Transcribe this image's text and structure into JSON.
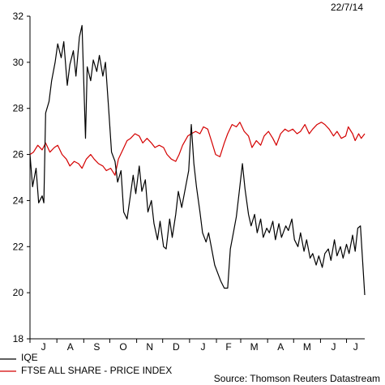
{
  "date_stamp": "22/7/14",
  "source": "Source: Thomson Reuters Datastream",
  "colors": {
    "iqe": "#000000",
    "ftse": "#d40000",
    "axis": "#000000"
  },
  "chart_data": {
    "type": "line",
    "title": "",
    "xlabel": "",
    "ylabel": "",
    "ylim": [
      18,
      32
    ],
    "yticks": [
      18,
      20,
      22,
      24,
      26,
      28,
      30,
      32
    ],
    "grid": false,
    "legend_placement": "bottom-left",
    "x_range": [
      "2013-07-01",
      "2014-07-22"
    ],
    "month_labels": [
      "J",
      "A",
      "S",
      "O",
      "N",
      "D",
      "J",
      "F",
      "M",
      "A",
      "M",
      "J",
      "J"
    ],
    "series": [
      {
        "name": "IQE",
        "color": "#000000",
        "points": [
          [
            "2013-07-01",
            26.0
          ],
          [
            "2013-07-04",
            24.6
          ],
          [
            "2013-07-08",
            25.4
          ],
          [
            "2013-07-11",
            23.9
          ],
          [
            "2013-07-15",
            24.2
          ],
          [
            "2013-07-17",
            23.9
          ],
          [
            "2013-07-19",
            27.8
          ],
          [
            "2013-07-23",
            28.3
          ],
          [
            "2013-07-26",
            29.2
          ],
          [
            "2013-07-30",
            30.0
          ],
          [
            "2013-08-02",
            30.8
          ],
          [
            "2013-08-06",
            30.2
          ],
          [
            "2013-08-09",
            30.9
          ],
          [
            "2013-08-13",
            29.0
          ],
          [
            "2013-08-16",
            29.9
          ],
          [
            "2013-08-20",
            30.5
          ],
          [
            "2013-08-23",
            29.4
          ],
          [
            "2013-08-27",
            31.1
          ],
          [
            "2013-08-30",
            31.6
          ],
          [
            "2013-09-03",
            26.7
          ],
          [
            "2013-09-05",
            29.8
          ],
          [
            "2013-09-09",
            29.2
          ],
          [
            "2013-09-12",
            30.1
          ],
          [
            "2013-09-16",
            29.6
          ],
          [
            "2013-09-19",
            30.3
          ],
          [
            "2013-09-23",
            29.4
          ],
          [
            "2013-09-26",
            30.0
          ],
          [
            "2013-09-30",
            27.8
          ],
          [
            "2013-10-03",
            26.1
          ],
          [
            "2013-10-07",
            25.7
          ],
          [
            "2013-10-10",
            24.8
          ],
          [
            "2013-10-14",
            25.3
          ],
          [
            "2013-10-17",
            23.5
          ],
          [
            "2013-10-21",
            23.2
          ],
          [
            "2013-10-24",
            24.0
          ],
          [
            "2013-10-28",
            25.1
          ],
          [
            "2013-10-31",
            24.3
          ],
          [
            "2013-11-04",
            25.5
          ],
          [
            "2013-11-07",
            24.4
          ],
          [
            "2013-11-11",
            24.9
          ],
          [
            "2013-11-14",
            23.5
          ],
          [
            "2013-11-18",
            24.0
          ],
          [
            "2013-11-21",
            23.0
          ],
          [
            "2013-11-25",
            22.3
          ],
          [
            "2013-11-28",
            23.1
          ],
          [
            "2013-12-02",
            22.0
          ],
          [
            "2013-12-05",
            21.9
          ],
          [
            "2013-12-09",
            23.2
          ],
          [
            "2013-12-12",
            22.4
          ],
          [
            "2013-12-16",
            23.4
          ],
          [
            "2013-12-19",
            24.4
          ],
          [
            "2013-12-23",
            23.7
          ],
          [
            "2013-12-27",
            24.5
          ],
          [
            "2013-12-31",
            25.3
          ],
          [
            "2014-01-03",
            27.3
          ],
          [
            "2014-01-06",
            25.6
          ],
          [
            "2014-01-09",
            24.6
          ],
          [
            "2014-01-13",
            23.5
          ],
          [
            "2014-01-16",
            22.6
          ],
          [
            "2014-01-20",
            22.2
          ],
          [
            "2014-01-23",
            22.6
          ],
          [
            "2014-01-27",
            21.8
          ],
          [
            "2014-01-30",
            21.2
          ],
          [
            "2014-02-03",
            20.8
          ],
          [
            "2014-02-06",
            20.5
          ],
          [
            "2014-02-10",
            20.2
          ],
          [
            "2014-02-14",
            20.2
          ],
          [
            "2014-02-17",
            21.9
          ],
          [
            "2014-02-20",
            22.5
          ],
          [
            "2014-02-24",
            23.3
          ],
          [
            "2014-02-27",
            24.3
          ],
          [
            "2014-03-03",
            25.6
          ],
          [
            "2014-03-06",
            24.5
          ],
          [
            "2014-03-10",
            23.4
          ],
          [
            "2014-03-13",
            22.9
          ],
          [
            "2014-03-17",
            23.4
          ],
          [
            "2014-03-20",
            22.6
          ],
          [
            "2014-03-24",
            23.2
          ],
          [
            "2014-03-27",
            22.4
          ],
          [
            "2014-03-31",
            22.8
          ],
          [
            "2014-04-03",
            22.6
          ],
          [
            "2014-04-07",
            23.1
          ],
          [
            "2014-04-10",
            22.3
          ],
          [
            "2014-04-14",
            23.0
          ],
          [
            "2014-04-17",
            22.4
          ],
          [
            "2014-04-22",
            22.9
          ],
          [
            "2014-04-25",
            22.7
          ],
          [
            "2014-04-29",
            23.2
          ],
          [
            "2014-05-02",
            22.3
          ],
          [
            "2014-05-06",
            22.0
          ],
          [
            "2014-05-09",
            22.6
          ],
          [
            "2014-05-13",
            21.8
          ],
          [
            "2014-05-16",
            22.3
          ],
          [
            "2014-05-20",
            21.5
          ],
          [
            "2014-05-23",
            21.7
          ],
          [
            "2014-05-27",
            21.2
          ],
          [
            "2014-05-30",
            21.6
          ],
          [
            "2014-06-03",
            21.1
          ],
          [
            "2014-06-06",
            21.7
          ],
          [
            "2014-06-10",
            21.9
          ],
          [
            "2014-06-13",
            21.4
          ],
          [
            "2014-06-17",
            22.3
          ],
          [
            "2014-06-20",
            21.6
          ],
          [
            "2014-06-24",
            22.0
          ],
          [
            "2014-06-27",
            21.5
          ],
          [
            "2014-07-01",
            22.1
          ],
          [
            "2014-07-04",
            21.7
          ],
          [
            "2014-07-08",
            22.5
          ],
          [
            "2014-07-11",
            21.8
          ],
          [
            "2014-07-14",
            22.8
          ],
          [
            "2014-07-17",
            22.9
          ],
          [
            "2014-07-22",
            19.9
          ]
        ]
      },
      {
        "name": "FTSE ALL SHARE - PRICE INDEX",
        "color": "#d40000",
        "points": [
          [
            "2013-07-01",
            26.0
          ],
          [
            "2013-07-05",
            26.1
          ],
          [
            "2013-07-10",
            26.4
          ],
          [
            "2013-07-15",
            26.2
          ],
          [
            "2013-07-19",
            26.5
          ],
          [
            "2013-07-24",
            26.1
          ],
          [
            "2013-07-29",
            26.3
          ],
          [
            "2013-08-02",
            26.4
          ],
          [
            "2013-08-07",
            26.0
          ],
          [
            "2013-08-12",
            25.8
          ],
          [
            "2013-08-16",
            25.5
          ],
          [
            "2013-08-21",
            25.7
          ],
          [
            "2013-08-26",
            25.6
          ],
          [
            "2013-08-30",
            25.4
          ],
          [
            "2013-09-04",
            25.8
          ],
          [
            "2013-09-09",
            26.0
          ],
          [
            "2013-09-13",
            25.8
          ],
          [
            "2013-09-18",
            25.6
          ],
          [
            "2013-09-23",
            25.5
          ],
          [
            "2013-09-27",
            25.3
          ],
          [
            "2013-10-02",
            25.4
          ],
          [
            "2013-10-07",
            25.1
          ],
          [
            "2013-10-11",
            25.8
          ],
          [
            "2013-10-16",
            26.2
          ],
          [
            "2013-10-21",
            26.6
          ],
          [
            "2013-10-25",
            26.7
          ],
          [
            "2013-10-30",
            26.9
          ],
          [
            "2013-11-04",
            26.8
          ],
          [
            "2013-11-08",
            26.5
          ],
          [
            "2013-11-13",
            26.7
          ],
          [
            "2013-11-18",
            26.5
          ],
          [
            "2013-11-22",
            26.3
          ],
          [
            "2013-11-27",
            26.4
          ],
          [
            "2013-12-02",
            26.3
          ],
          [
            "2013-12-06",
            26.0
          ],
          [
            "2013-12-11",
            25.8
          ],
          [
            "2013-12-16",
            25.7
          ],
          [
            "2013-12-20",
            26.0
          ],
          [
            "2013-12-24",
            26.4
          ],
          [
            "2013-12-30",
            26.8
          ],
          [
            "2014-01-03",
            26.9
          ],
          [
            "2014-01-08",
            27.0
          ],
          [
            "2014-01-13",
            26.9
          ],
          [
            "2014-01-17",
            27.2
          ],
          [
            "2014-01-22",
            27.1
          ],
          [
            "2014-01-27",
            26.5
          ],
          [
            "2014-01-31",
            26.0
          ],
          [
            "2014-02-05",
            25.9
          ],
          [
            "2014-02-10",
            26.5
          ],
          [
            "2014-02-14",
            26.9
          ],
          [
            "2014-02-19",
            27.3
          ],
          [
            "2014-02-24",
            27.2
          ],
          [
            "2014-02-28",
            27.4
          ],
          [
            "2014-03-05",
            27.0
          ],
          [
            "2014-03-10",
            26.8
          ],
          [
            "2014-03-14",
            26.3
          ],
          [
            "2014-03-19",
            26.6
          ],
          [
            "2014-03-24",
            26.4
          ],
          [
            "2014-03-28",
            26.8
          ],
          [
            "2014-04-02",
            27.0
          ],
          [
            "2014-04-07",
            26.7
          ],
          [
            "2014-04-11",
            26.4
          ],
          [
            "2014-04-16",
            26.9
          ],
          [
            "2014-04-21",
            27.1
          ],
          [
            "2014-04-25",
            27.0
          ],
          [
            "2014-04-30",
            27.1
          ],
          [
            "2014-05-05",
            26.9
          ],
          [
            "2014-05-09",
            27.0
          ],
          [
            "2014-05-14",
            27.3
          ],
          [
            "2014-05-19",
            26.9
          ],
          [
            "2014-05-23",
            27.1
          ],
          [
            "2014-05-28",
            27.3
          ],
          [
            "2014-06-02",
            27.4
          ],
          [
            "2014-06-06",
            27.3
          ],
          [
            "2014-06-11",
            27.1
          ],
          [
            "2014-06-16",
            26.8
          ],
          [
            "2014-06-20",
            27.0
          ],
          [
            "2014-06-25",
            26.7
          ],
          [
            "2014-06-30",
            26.8
          ],
          [
            "2014-07-03",
            27.2
          ],
          [
            "2014-07-08",
            26.9
          ],
          [
            "2014-07-11",
            26.6
          ],
          [
            "2014-07-15",
            26.9
          ],
          [
            "2014-07-18",
            26.7
          ],
          [
            "2014-07-22",
            26.9
          ]
        ]
      }
    ]
  }
}
